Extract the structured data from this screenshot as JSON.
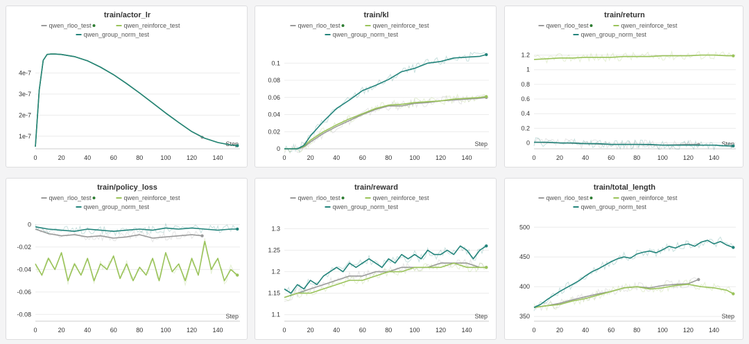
{
  "colors": {
    "rloo": "#9a9a9a",
    "reinforce": "#9ac35a",
    "group": "#23847b"
  },
  "chart_data": [
    {
      "type": "line",
      "title": "train/actor_lr",
      "xlabel": "Step",
      "xlim": [
        0,
        157
      ],
      "ylim": [
        4e-08,
        5.2e-07
      ],
      "xticks": [
        0,
        20,
        40,
        60,
        80,
        100,
        120,
        140
      ],
      "yticks": [
        1e-07,
        2e-07,
        3e-07,
        4e-07
      ],
      "yticklabels": [
        "1e-7",
        "2e-7",
        "3e-7",
        "4e-7"
      ],
      "legend": [
        "qwen_rloo_test",
        "qwen_reinforce_test",
        "qwen_group_norm_test"
      ],
      "series": [
        {
          "name": "qwen_rloo_test",
          "x": [
            0,
            3,
            6,
            9,
            12,
            15,
            20,
            30,
            40,
            50,
            60,
            70,
            80,
            90,
            100,
            110,
            120,
            128
          ],
          "y": [
            5e-08,
            3.2e-07,
            4.6e-07,
            4.88e-07,
            4.9e-07,
            4.9e-07,
            4.88e-07,
            4.78e-07,
            4.58e-07,
            4.28e-07,
            3.92e-07,
            3.5e-07,
            3.05e-07,
            2.58e-07,
            2.1e-07,
            1.65e-07,
            1.22e-07,
            9.5e-08
          ]
        },
        {
          "name": "qwen_reinforce_test",
          "x": [
            0,
            3,
            6,
            9,
            12,
            15,
            20,
            30,
            40,
            50,
            60,
            70,
            80,
            90,
            100,
            110,
            120,
            130,
            140,
            150,
            155
          ],
          "y": [
            5e-08,
            3.2e-07,
            4.6e-07,
            4.88e-07,
            4.9e-07,
            4.9e-07,
            4.88e-07,
            4.78e-07,
            4.58e-07,
            4.28e-07,
            3.92e-07,
            3.5e-07,
            3.05e-07,
            2.58e-07,
            2.1e-07,
            1.65e-07,
            1.22e-07,
            9e-08,
            7e-08,
            5.8e-08,
            5.5e-08
          ]
        },
        {
          "name": "qwen_group_norm_test",
          "x": [
            0,
            3,
            6,
            9,
            12,
            15,
            20,
            30,
            40,
            50,
            60,
            70,
            80,
            90,
            100,
            110,
            120,
            130,
            140,
            150,
            155
          ],
          "y": [
            5e-08,
            3.2e-07,
            4.6e-07,
            4.88e-07,
            4.9e-07,
            4.9e-07,
            4.88e-07,
            4.78e-07,
            4.58e-07,
            4.28e-07,
            3.92e-07,
            3.5e-07,
            3.05e-07,
            2.58e-07,
            2.1e-07,
            1.65e-07,
            1.22e-07,
            9e-08,
            7e-08,
            5.8e-08,
            5.5e-08
          ]
        }
      ]
    },
    {
      "type": "line",
      "title": "train/kl",
      "xlabel": "Step",
      "xlim": [
        0,
        157
      ],
      "ylim": [
        0,
        0.118
      ],
      "xticks": [
        0,
        20,
        40,
        60,
        80,
        100,
        120,
        140
      ],
      "yticks": [
        0,
        0.02,
        0.04,
        0.06,
        0.08,
        0.1
      ],
      "yticklabels": [
        "0",
        "0.02",
        "0.04",
        "0.06",
        "0.08",
        "0.1"
      ],
      "legend": [
        "qwen_rloo_test",
        "qwen_reinforce_test",
        "qwen_group_norm_test"
      ],
      "series": [
        {
          "name": "qwen_rloo_test",
          "x": [
            0,
            10,
            15,
            20,
            30,
            40,
            50,
            60,
            70,
            80,
            90,
            100,
            110,
            120,
            130,
            140,
            150,
            155
          ],
          "y": [
            0,
            0,
            0.002,
            0.008,
            0.018,
            0.026,
            0.033,
            0.04,
            0.046,
            0.05,
            0.05,
            0.053,
            0.054,
            0.056,
            0.057,
            0.058,
            0.059,
            0.06
          ]
        },
        {
          "name": "qwen_reinforce_test",
          "x": [
            0,
            10,
            15,
            20,
            30,
            40,
            50,
            60,
            70,
            80,
            90,
            100,
            110,
            120,
            130,
            140,
            150,
            155
          ],
          "y": [
            0,
            0,
            0.003,
            0.01,
            0.02,
            0.028,
            0.035,
            0.041,
            0.047,
            0.051,
            0.052,
            0.054,
            0.055,
            0.056,
            0.058,
            0.059,
            0.06,
            0.061
          ]
        },
        {
          "name": "qwen_group_norm_test",
          "x": [
            0,
            10,
            15,
            20,
            30,
            40,
            50,
            60,
            70,
            80,
            90,
            100,
            110,
            120,
            130,
            140,
            150,
            155
          ],
          "y": [
            0,
            0,
            0.004,
            0.015,
            0.032,
            0.047,
            0.057,
            0.068,
            0.074,
            0.081,
            0.09,
            0.094,
            0.1,
            0.102,
            0.106,
            0.107,
            0.108,
            0.11
          ]
        }
      ]
    },
    {
      "type": "line",
      "title": "train/return",
      "xlabel": "Step",
      "xlim": [
        0,
        157
      ],
      "ylim": [
        -0.08,
        1.3
      ],
      "xticks": [
        0,
        20,
        40,
        60,
        80,
        100,
        120,
        140
      ],
      "yticks": [
        0,
        0.2,
        0.4,
        0.6,
        0.8,
        1,
        1.2
      ],
      "yticklabels": [
        "0",
        "0.2",
        "0.4",
        "0.6",
        "0.8",
        "1",
        "1.2"
      ],
      "legend": [
        "qwen_rloo_test",
        "qwen_reinforce_test",
        "qwen_group_norm_test"
      ],
      "series": [
        {
          "name": "qwen_rloo_test",
          "x": [
            0,
            20,
            40,
            60,
            80,
            100,
            120,
            128
          ],
          "y": [
            0.01,
            0,
            -0.01,
            -0.02,
            -0.02,
            -0.03,
            -0.02,
            -0.02
          ]
        },
        {
          "name": "qwen_reinforce_test",
          "x": [
            0,
            10,
            20,
            30,
            40,
            50,
            60,
            70,
            80,
            90,
            100,
            110,
            120,
            130,
            140,
            150,
            155
          ],
          "y": [
            1.14,
            1.15,
            1.16,
            1.16,
            1.17,
            1.17,
            1.17,
            1.18,
            1.18,
            1.18,
            1.19,
            1.19,
            1.19,
            1.2,
            1.2,
            1.19,
            1.19
          ]
        },
        {
          "name": "qwen_group_norm_test",
          "x": [
            0,
            10,
            20,
            30,
            40,
            50,
            60,
            70,
            80,
            90,
            100,
            110,
            120,
            130,
            140,
            150,
            155
          ],
          "y": [
            0.01,
            0.01,
            0,
            0,
            -0.01,
            -0.01,
            -0.02,
            -0.02,
            -0.02,
            -0.02,
            -0.03,
            -0.03,
            -0.03,
            -0.03,
            -0.03,
            -0.04,
            -0.04
          ]
        }
      ]
    },
    {
      "type": "line",
      "title": "train/policy_loss",
      "xlabel": "Step",
      "xlim": [
        0,
        157
      ],
      "ylim": [
        -0.086,
        0.004
      ],
      "xticks": [
        0,
        20,
        40,
        60,
        80,
        100,
        120,
        140
      ],
      "yticks": [
        0,
        -0.02,
        -0.04,
        -0.06,
        -0.08
      ],
      "yticklabels": [
        "0",
        "-0.02",
        "-0.04",
        "-0.06",
        "-0.08"
      ],
      "legend": [
        "qwen_rloo_test",
        "qwen_reinforce_test",
        "qwen_group_norm_test"
      ],
      "series": [
        {
          "name": "qwen_rloo_test",
          "x": [
            0,
            10,
            20,
            30,
            40,
            50,
            60,
            70,
            80,
            90,
            100,
            110,
            120,
            128
          ],
          "y": [
            -0.004,
            -0.008,
            -0.01,
            -0.009,
            -0.011,
            -0.01,
            -0.012,
            -0.011,
            -0.009,
            -0.012,
            -0.011,
            -0.01,
            -0.009,
            -0.01
          ]
        },
        {
          "name": "qwen_reinforce_test",
          "x": [
            0,
            5,
            10,
            15,
            20,
            25,
            30,
            35,
            40,
            45,
            50,
            55,
            60,
            65,
            70,
            75,
            80,
            85,
            90,
            95,
            100,
            105,
            110,
            115,
            120,
            125,
            130,
            135,
            140,
            145,
            150,
            155
          ],
          "y": [
            -0.035,
            -0.045,
            -0.03,
            -0.04,
            -0.025,
            -0.05,
            -0.035,
            -0.045,
            -0.03,
            -0.05,
            -0.035,
            -0.04,
            -0.028,
            -0.048,
            -0.035,
            -0.05,
            -0.038,
            -0.045,
            -0.03,
            -0.05,
            -0.025,
            -0.042,
            -0.035,
            -0.05,
            -0.03,
            -0.045,
            -0.015,
            -0.04,
            -0.03,
            -0.05,
            -0.04,
            -0.045
          ]
        },
        {
          "name": "qwen_group_norm_test",
          "x": [
            0,
            10,
            20,
            30,
            40,
            50,
            60,
            70,
            80,
            90,
            100,
            110,
            120,
            130,
            140,
            150,
            155
          ],
          "y": [
            -0.002,
            -0.004,
            -0.005,
            -0.006,
            -0.004,
            -0.005,
            -0.006,
            -0.005,
            -0.004,
            -0.005,
            -0.003,
            -0.004,
            -0.003,
            -0.004,
            -0.005,
            -0.004,
            -0.004
          ]
        }
      ]
    },
    {
      "type": "line",
      "title": "train/reward",
      "xlabel": "Step",
      "xlim": [
        0,
        157
      ],
      "ylim": [
        1.085,
        1.32
      ],
      "xticks": [
        0,
        20,
        40,
        60,
        80,
        100,
        120,
        140
      ],
      "yticks": [
        1.1,
        1.15,
        1.2,
        1.25,
        1.3
      ],
      "yticklabels": [
        "1.1",
        "1.15",
        "1.2",
        "1.25",
        "1.3"
      ],
      "legend": [
        "qwen_rloo_test",
        "qwen_reinforce_test",
        "qwen_group_norm_test"
      ],
      "series": [
        {
          "name": "qwen_rloo_test",
          "x": [
            0,
            10,
            20,
            30,
            40,
            50,
            60,
            70,
            80,
            90,
            100,
            110,
            120,
            130,
            140,
            150,
            155
          ],
          "y": [
            1.14,
            1.15,
            1.16,
            1.17,
            1.18,
            1.19,
            1.19,
            1.2,
            1.2,
            1.21,
            1.21,
            1.21,
            1.22,
            1.22,
            1.22,
            1.21,
            1.21
          ]
        },
        {
          "name": "qwen_reinforce_test",
          "x": [
            0,
            10,
            20,
            30,
            40,
            50,
            60,
            70,
            80,
            90,
            100,
            110,
            120,
            130,
            140,
            150,
            155
          ],
          "y": [
            1.14,
            1.15,
            1.15,
            1.16,
            1.17,
            1.18,
            1.18,
            1.19,
            1.2,
            1.2,
            1.21,
            1.21,
            1.21,
            1.22,
            1.21,
            1.21,
            1.21
          ]
        },
        {
          "name": "qwen_group_norm_test",
          "x": [
            0,
            5,
            10,
            15,
            20,
            25,
            30,
            35,
            40,
            45,
            50,
            55,
            60,
            65,
            70,
            75,
            80,
            85,
            90,
            95,
            100,
            105,
            110,
            115,
            120,
            125,
            130,
            135,
            140,
            145,
            150,
            155
          ],
          "y": [
            1.16,
            1.15,
            1.17,
            1.16,
            1.18,
            1.17,
            1.19,
            1.2,
            1.21,
            1.2,
            1.22,
            1.21,
            1.22,
            1.23,
            1.22,
            1.21,
            1.23,
            1.22,
            1.24,
            1.23,
            1.24,
            1.23,
            1.25,
            1.24,
            1.24,
            1.25,
            1.24,
            1.26,
            1.25,
            1.23,
            1.25,
            1.26
          ]
        }
      ]
    },
    {
      "type": "line",
      "title": "train/total_length",
      "xlabel": "Step",
      "xlim": [
        0,
        157
      ],
      "ylim": [
        342,
        512
      ],
      "xticks": [
        0,
        20,
        40,
        60,
        80,
        100,
        120,
        140
      ],
      "yticks": [
        350,
        400,
        450,
        500
      ],
      "yticklabels": [
        "350",
        "400",
        "450",
        "500"
      ],
      "legend": [
        "qwen_rloo_test",
        "qwen_reinforce_test",
        "qwen_group_norm_test"
      ],
      "series": [
        {
          "name": "qwen_rloo_test",
          "x": [
            0,
            10,
            20,
            30,
            40,
            50,
            60,
            70,
            80,
            90,
            100,
            110,
            120,
            128
          ],
          "y": [
            365,
            368,
            372,
            378,
            383,
            388,
            392,
            398,
            400,
            398,
            402,
            404,
            405,
            412
          ]
        },
        {
          "name": "qwen_reinforce_test",
          "x": [
            0,
            10,
            20,
            30,
            40,
            50,
            60,
            70,
            80,
            90,
            100,
            110,
            120,
            130,
            140,
            150,
            155
          ],
          "y": [
            365,
            368,
            370,
            376,
            380,
            386,
            392,
            398,
            400,
            396,
            398,
            402,
            404,
            400,
            398,
            394,
            388
          ]
        },
        {
          "name": "qwen_group_norm_test",
          "x": [
            0,
            5,
            10,
            15,
            20,
            25,
            30,
            35,
            40,
            45,
            50,
            55,
            60,
            65,
            70,
            75,
            80,
            85,
            90,
            95,
            100,
            105,
            110,
            115,
            120,
            125,
            130,
            135,
            140,
            145,
            150,
            155
          ],
          "y": [
            365,
            370,
            378,
            385,
            392,
            398,
            404,
            410,
            418,
            425,
            430,
            436,
            442,
            447,
            450,
            448,
            455,
            458,
            460,
            457,
            462,
            468,
            465,
            470,
            472,
            468,
            475,
            478,
            472,
            476,
            470,
            466
          ]
        }
      ]
    }
  ]
}
